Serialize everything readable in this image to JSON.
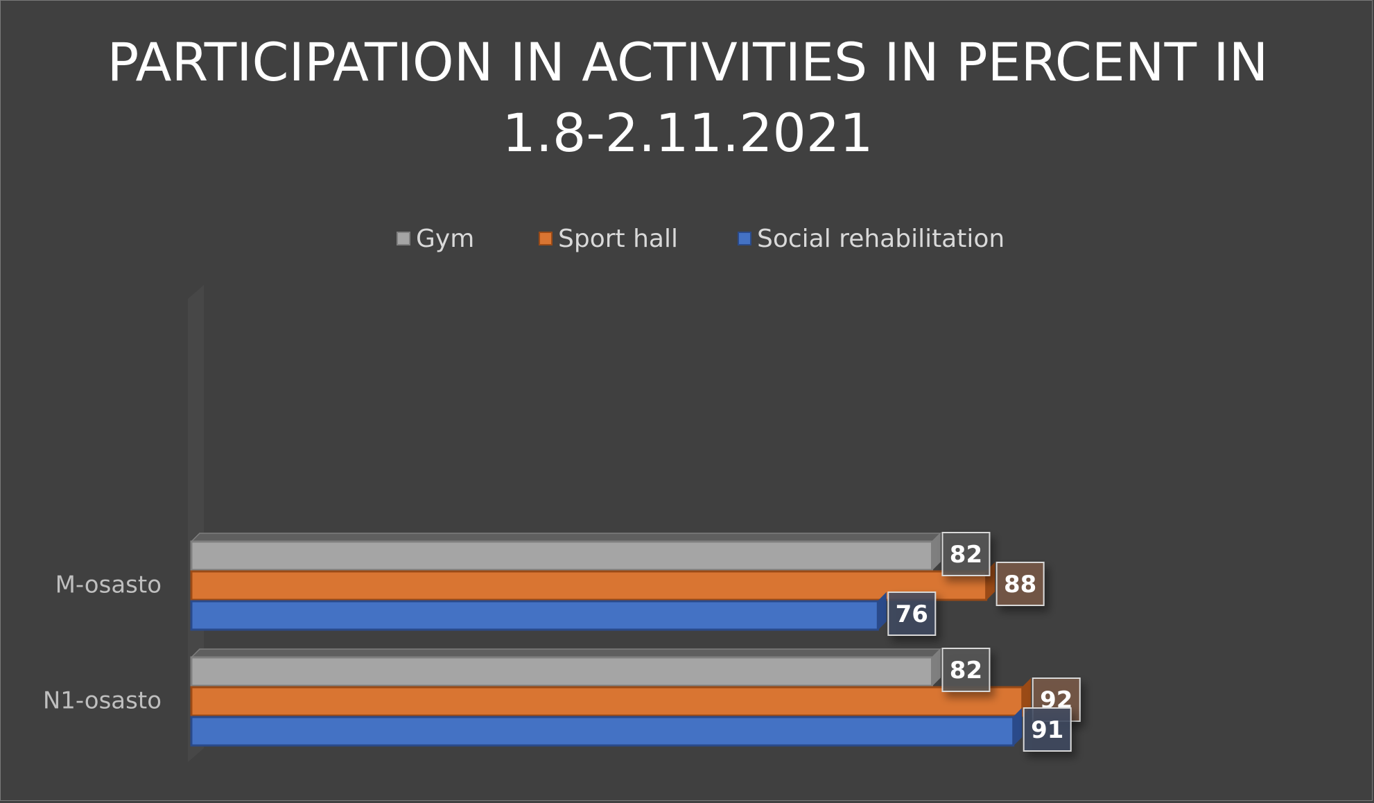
{
  "chart_data": {
    "type": "bar",
    "orientation": "horizontal",
    "title_lines": [
      "PARTICIPATION IN ACTIVITIES IN PERCENT IN",
      "1.8-2.11.2021"
    ],
    "categories": [
      "M-osasto",
      "N1-osasto"
    ],
    "series": [
      {
        "name": "Gym",
        "values": [
          82,
          82
        ],
        "color": "#a5a5a5",
        "edge": "#7f7f7f",
        "label_bg": "#585858"
      },
      {
        "name": "Sport hall",
        "values": [
          88,
          92
        ],
        "color": "#d97532",
        "edge": "#9a4a16",
        "label_bg": "#7a5a48"
      },
      {
        "name": "Social rehabilitation",
        "values": [
          76,
          91
        ],
        "color": "#4472c4",
        "edge": "#2a4a8a",
        "label_bg": "#3f4a60"
      }
    ],
    "xlim": [
      0,
      100
    ],
    "legend_position": "top",
    "data_labels": true,
    "grid": false
  }
}
